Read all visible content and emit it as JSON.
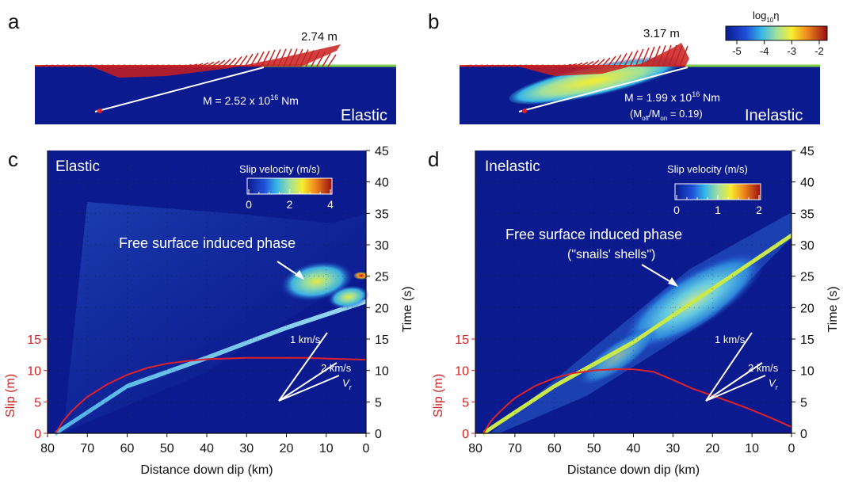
{
  "panels": {
    "a": {
      "letter": "a",
      "max_slip": "2.74 m",
      "moment_prefix": "M = 2.52 x 10",
      "moment_exp": "16",
      "moment_unit": " Nm",
      "label": "Elastic"
    },
    "b": {
      "letter": "b",
      "max_slip": "3.17 m",
      "moment_prefix": "M = 1.99 x 10",
      "moment_exp": "16",
      "moment_unit": " Nm",
      "ratio_open": "(M",
      "ratio_sub1": "off",
      "ratio_mid": "/M",
      "ratio_sub2": "on",
      "ratio_close": " = 0.19)",
      "label": "Inelastic",
      "colorbar": {
        "title_main": "log",
        "title_sub": "10",
        "title_sym": "η",
        "ticks": [
          "-5",
          "-4",
          "-3",
          "-2"
        ]
      }
    },
    "c": {
      "letter": "c",
      "label": "Elastic",
      "annotation": "Free surface induced phase",
      "colorbar": {
        "title": "Slip velocity (m/s)",
        "ticks": [
          "0",
          "2",
          "4"
        ]
      },
      "rays": [
        "1 km/s",
        "2 km/s",
        "V"
      ],
      "ray_sub": "r"
    },
    "d": {
      "letter": "d",
      "label": "Inelastic",
      "annotation": "Free surface induced phase",
      "annotation2": "(\"snails' shells\")",
      "colorbar": {
        "title": "Slip velocity (m/s)",
        "ticks": [
          "0",
          "1",
          "2"
        ]
      },
      "rays": [
        "1 km/s",
        "2 km/s",
        "V"
      ],
      "ray_sub": "r"
    }
  },
  "axes": {
    "xlabel": "Distance down dip (km)",
    "ylabel_left": "Slip (m)",
    "ylabel_right": "Time (s)",
    "x_ticks": [
      "80",
      "70",
      "60",
      "50",
      "40",
      "30",
      "20",
      "10",
      "0"
    ],
    "slip_ticks": [
      "0",
      "5",
      "10",
      "15"
    ],
    "time_ticks": [
      "0",
      "5",
      "10",
      "15",
      "20",
      "25",
      "30",
      "35",
      "40",
      "45"
    ]
  },
  "colors": {
    "background": "#0b1b8f",
    "slip_curve": "#e0202a",
    "accent_text": "#d42020"
  },
  "chart_data": [
    {
      "panel": "c",
      "type": "line",
      "x_reversed": true,
      "xlim": [
        80,
        0
      ],
      "ylim_slip": [
        0,
        45
      ],
      "ylim_time": [
        0,
        45
      ],
      "slip_series": {
        "x": [
          78,
          76,
          74,
          72,
          70,
          65,
          60,
          55,
          50,
          45,
          40,
          35,
          30,
          25,
          20,
          15,
          10,
          5,
          0
        ],
        "y": [
          0,
          2.0,
          3.5,
          4.7,
          5.8,
          7.8,
          9.3,
          10.4,
          11.1,
          11.5,
          11.8,
          11.9,
          12.0,
          12.0,
          12.0,
          12.0,
          11.9,
          11.8,
          11.7
        ]
      },
      "rupture_front": {
        "x": [
          78,
          60,
          40,
          20,
          0
        ],
        "time": [
          0,
          7.5,
          12,
          16.8,
          21
        ]
      },
      "colorbar_range": [
        0,
        4
      ]
    },
    {
      "panel": "d",
      "type": "line",
      "x_reversed": true,
      "xlim": [
        80,
        0
      ],
      "ylim_slip": [
        0,
        45
      ],
      "ylim_time": [
        0,
        45
      ],
      "slip_series": {
        "x": [
          78,
          76,
          74,
          72,
          70,
          65,
          60,
          55,
          50,
          45,
          40,
          35,
          30,
          25,
          20,
          15,
          10,
          5,
          0
        ],
        "y": [
          0,
          2.0,
          3.3,
          4.5,
          5.6,
          7.5,
          8.8,
          9.6,
          10.0,
          10.2,
          10.2,
          9.8,
          8.5,
          7.1,
          6.0,
          4.9,
          3.7,
          2.4,
          1.0
        ]
      },
      "rupture_front": {
        "x": [
          78,
          60,
          40,
          20,
          0
        ],
        "time": [
          0,
          7.5,
          14.5,
          23,
          31.5
        ]
      },
      "colorbar_range": [
        0,
        2
      ]
    }
  ]
}
